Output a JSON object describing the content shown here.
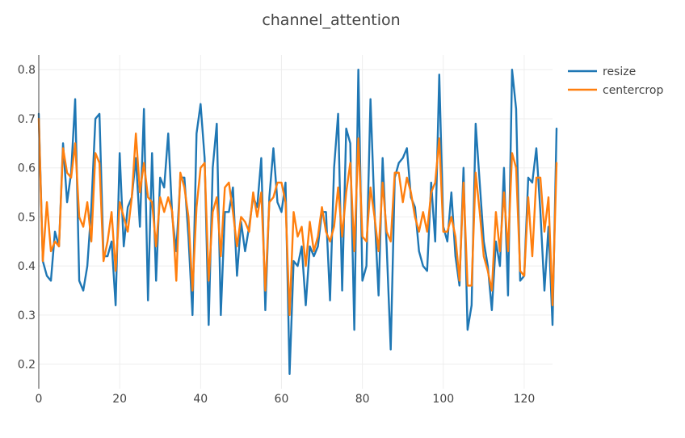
{
  "chart_data": {
    "type": "line",
    "title": "channel_attention",
    "xlabel": "",
    "ylabel": "",
    "xlim": [
      0,
      127
    ],
    "ylim": [
      0.15,
      0.83
    ],
    "x_ticks": [
      0,
      20,
      40,
      60,
      80,
      100,
      120
    ],
    "y_ticks": [
      0.2,
      0.3,
      0.4,
      0.5,
      0.6,
      0.7,
      0.8
    ],
    "grid": true,
    "legend_position": "top-right",
    "series": [
      {
        "name": "resize",
        "color": "#1f77b4",
        "values": [
          0.71,
          0.41,
          0.38,
          0.37,
          0.47,
          0.44,
          0.65,
          0.53,
          0.59,
          0.74,
          0.37,
          0.35,
          0.4,
          0.52,
          0.7,
          0.71,
          0.42,
          0.42,
          0.45,
          0.32,
          0.63,
          0.44,
          0.52,
          0.54,
          0.62,
          0.48,
          0.72,
          0.33,
          0.63,
          0.37,
          0.58,
          0.56,
          0.67,
          0.5,
          0.43,
          0.58,
          0.58,
          0.46,
          0.3,
          0.67,
          0.73,
          0.62,
          0.28,
          0.6,
          0.69,
          0.3,
          0.51,
          0.51,
          0.56,
          0.38,
          0.49,
          0.43,
          0.48,
          0.54,
          0.52,
          0.62,
          0.31,
          0.54,
          0.64,
          0.53,
          0.51,
          0.57,
          0.18,
          0.41,
          0.4,
          0.44,
          0.32,
          0.44,
          0.42,
          0.44,
          0.51,
          0.51,
          0.33,
          0.6,
          0.71,
          0.35,
          0.68,
          0.65,
          0.27,
          0.8,
          0.37,
          0.4,
          0.74,
          0.51,
          0.34,
          0.62,
          0.44,
          0.23,
          0.58,
          0.61,
          0.62,
          0.64,
          0.54,
          0.52,
          0.43,
          0.4,
          0.39,
          0.57,
          0.45,
          0.79,
          0.48,
          0.45,
          0.55,
          0.42,
          0.36,
          0.6,
          0.27,
          0.32,
          0.69,
          0.57,
          0.45,
          0.4,
          0.31,
          0.45,
          0.4,
          0.6,
          0.34,
          0.8,
          0.72,
          0.37,
          0.38,
          0.58,
          0.57,
          0.64,
          0.51,
          0.35,
          0.48,
          0.28,
          0.68
        ]
      },
      {
        "name": "centercrop",
        "color": "#ff7f0e",
        "values": [
          0.7,
          0.41,
          0.53,
          0.43,
          0.45,
          0.44,
          0.64,
          0.59,
          0.58,
          0.65,
          0.5,
          0.48,
          0.53,
          0.45,
          0.63,
          0.61,
          0.41,
          0.45,
          0.51,
          0.39,
          0.53,
          0.5,
          0.47,
          0.54,
          0.67,
          0.55,
          0.61,
          0.54,
          0.53,
          0.44,
          0.54,
          0.51,
          0.54,
          0.51,
          0.37,
          0.59,
          0.56,
          0.5,
          0.35,
          0.52,
          0.6,
          0.61,
          0.37,
          0.51,
          0.54,
          0.42,
          0.56,
          0.57,
          0.51,
          0.44,
          0.5,
          0.49,
          0.47,
          0.55,
          0.5,
          0.55,
          0.35,
          0.53,
          0.54,
          0.57,
          0.57,
          0.53,
          0.3,
          0.51,
          0.46,
          0.48,
          0.4,
          0.49,
          0.43,
          0.46,
          0.52,
          0.47,
          0.45,
          0.48,
          0.56,
          0.46,
          0.55,
          0.61,
          0.43,
          0.66,
          0.46,
          0.45,
          0.56,
          0.5,
          0.43,
          0.57,
          0.47,
          0.45,
          0.59,
          0.59,
          0.53,
          0.58,
          0.55,
          0.5,
          0.47,
          0.51,
          0.47,
          0.55,
          0.57,
          0.66,
          0.47,
          0.47,
          0.5,
          0.46,
          0.37,
          0.57,
          0.36,
          0.36,
          0.59,
          0.51,
          0.42,
          0.39,
          0.35,
          0.51,
          0.43,
          0.55,
          0.43,
          0.63,
          0.6,
          0.39,
          0.38,
          0.54,
          0.42,
          0.58,
          0.58,
          0.47,
          0.54,
          0.32,
          0.61
        ]
      }
    ]
  }
}
